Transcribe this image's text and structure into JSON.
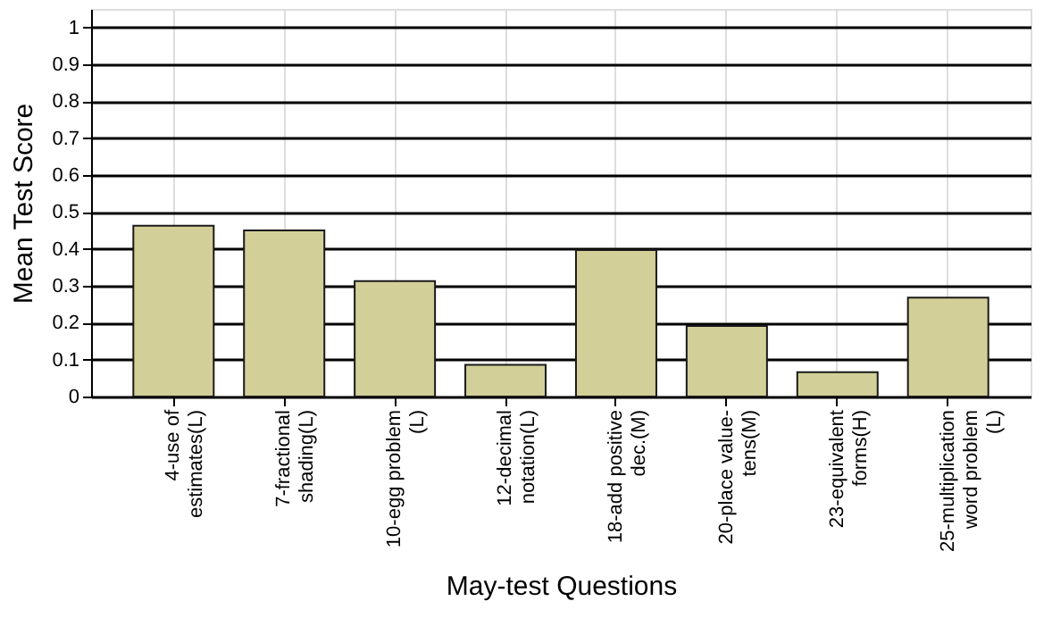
{
  "chart_data": {
    "type": "bar",
    "xlabel": "May-test Questions",
    "ylabel": "Mean Test Score",
    "categories": [
      "4-use of\nestimates(L)",
      "7-fractional\nshading(L)",
      "10-egg problem\n(L)",
      "12-decimal\nnotation(L)",
      "18-add positive\ndec.(M)",
      "20-place value-\ntens(M)",
      "23-equivalent\nforms(H)",
      "25-multiplication\nword problem\n(L)"
    ],
    "values": [
      0.463,
      0.45,
      0.313,
      0.086,
      0.397,
      0.191,
      0.066,
      0.268
    ],
    "color": "#d3cf98",
    "ylim": [
      0,
      1.05
    ],
    "yticks": [
      0,
      0.1,
      0.2,
      0.3,
      0.4,
      0.5,
      0.6,
      0.7,
      0.8,
      0.9,
      1
    ],
    "grid": true
  }
}
